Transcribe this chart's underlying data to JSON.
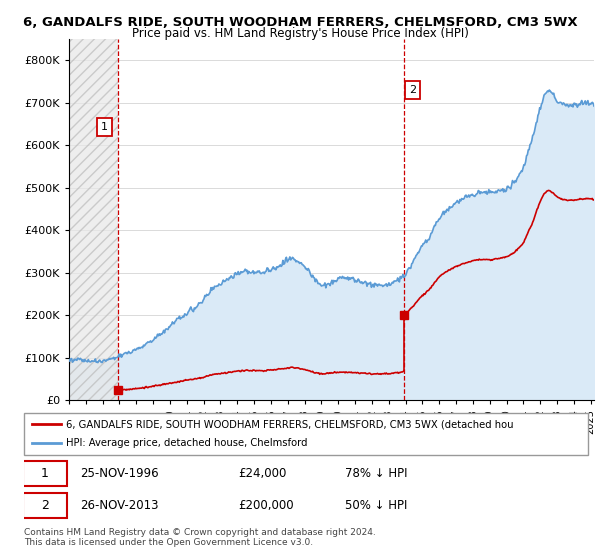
{
  "title1": "6, GANDALFS RIDE, SOUTH WOODHAM FERRERS, CHELMSFORD, CM3 5WX",
  "title2": "Price paid vs. HM Land Registry's House Price Index (HPI)",
  "legend_line1": "6, GANDALFS RIDE, SOUTH WOODHAM FERRERS, CHELMSFORD, CM3 5WX (detached hou",
  "legend_line2": "HPI: Average price, detached house, Chelmsford",
  "annotation1_date": "25-NOV-1996",
  "annotation1_price": "£24,000",
  "annotation1_hpi": "78% ↓ HPI",
  "annotation2_date": "26-NOV-2013",
  "annotation2_price": "£200,000",
  "annotation2_hpi": "50% ↓ HPI",
  "copyright": "Contains HM Land Registry data © Crown copyright and database right 2024.\nThis data is licensed under the Open Government Licence v3.0.",
  "sale1_x": 1996.92,
  "sale1_y": 24000,
  "sale2_x": 2013.92,
  "sale2_y": 200000,
  "hpi_color": "#5b9bd5",
  "hpi_fill_color": "#daeaf7",
  "price_color": "#cc0000",
  "vline_color": "#cc0000",
  "ylim": [
    0,
    850000
  ],
  "yticks": [
    0,
    100000,
    200000,
    300000,
    400000,
    500000,
    600000,
    700000,
    800000
  ],
  "ytick_labels": [
    "£0",
    "£100K",
    "£200K",
    "£300K",
    "£400K",
    "£500K",
    "£600K",
    "£700K",
    "£800K"
  ],
  "xmin": 1994.0,
  "xmax": 2025.2
}
